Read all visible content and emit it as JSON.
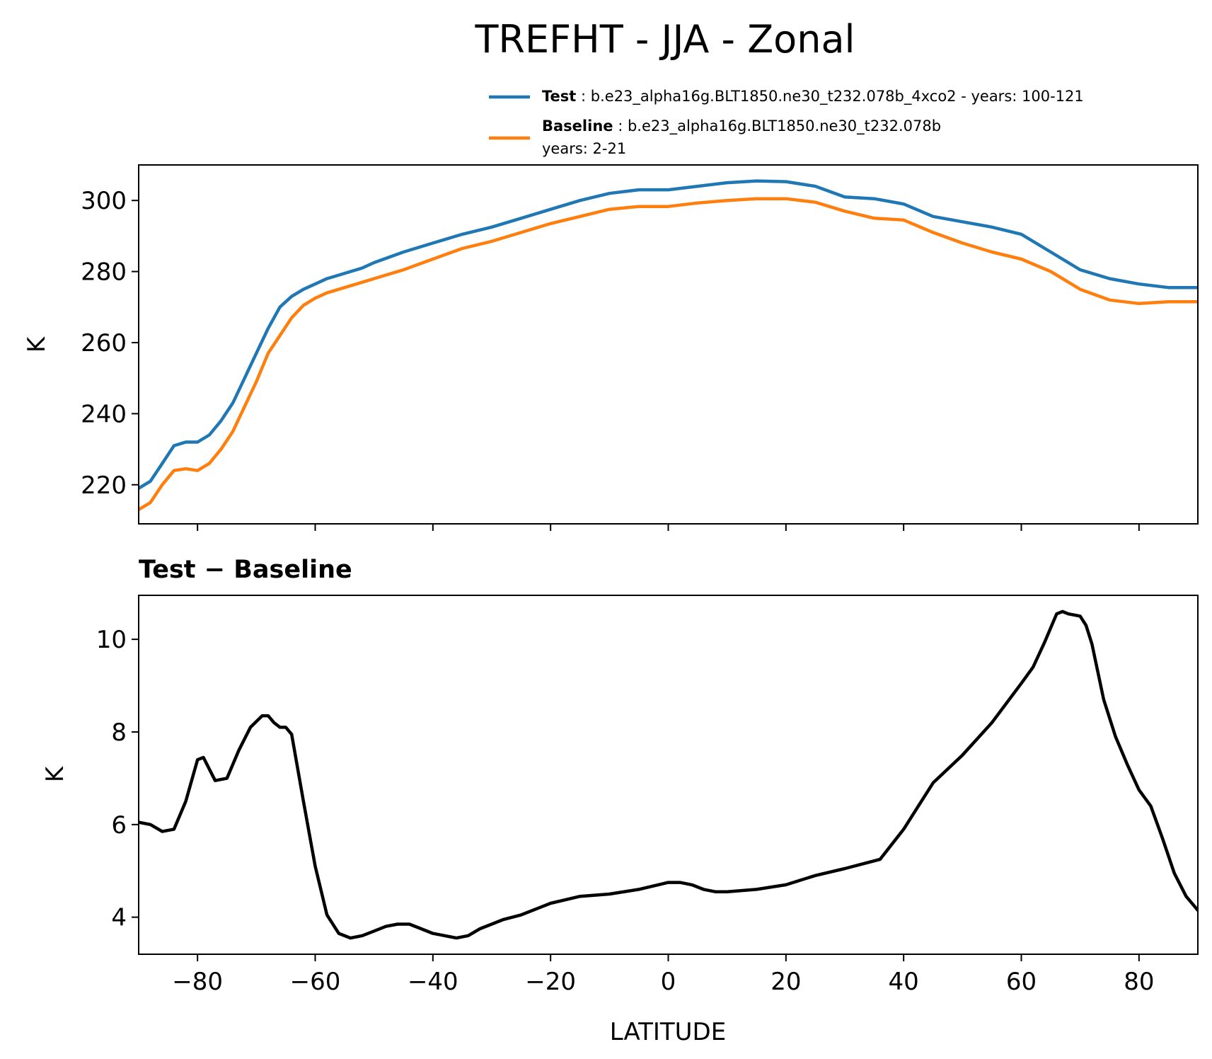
{
  "title": "TREFHT - JJA - Zonal",
  "legend": {
    "test": {
      "label": "Test",
      "separator": " : ",
      "desc": "b.e23_alpha16g.BLT1850.ne30_t232.078b_4xco2 - years: 100-121"
    },
    "baseline": {
      "label": "Baseline",
      "separator": " : ",
      "desc": "b.e23_alpha16g.BLT1850.ne30_t232.078b",
      "desc2": "years: 2-21"
    }
  },
  "colors": {
    "test": "#1f77b4",
    "baseline": "#ff7f0e",
    "diff": "#000000"
  },
  "xlabel": "LATITUDE",
  "chart_data": [
    {
      "type": "line",
      "title": "",
      "xlabel": "",
      "ylabel": "K",
      "xlim": [
        -90,
        90
      ],
      "ylim": [
        209,
        310
      ],
      "xticks": [
        -80,
        -60,
        -40,
        -20,
        0,
        20,
        40,
        60,
        80
      ],
      "yticks": [
        220,
        240,
        260,
        280,
        300
      ],
      "ytick_labels": [
        "220",
        "240",
        "260",
        "280",
        "300"
      ],
      "grid": false,
      "legend_position": "above-right",
      "x": [
        -90,
        -88,
        -86,
        -84,
        -82,
        -80,
        -78,
        -76,
        -74,
        -72,
        -70,
        -68,
        -66,
        -64,
        -62,
        -60,
        -58,
        -56,
        -54,
        -52,
        -50,
        -45,
        -40,
        -35,
        -30,
        -25,
        -20,
        -15,
        -10,
        -5,
        0,
        5,
        10,
        15,
        20,
        25,
        30,
        35,
        40,
        45,
        50,
        55,
        60,
        65,
        70,
        75,
        80,
        85,
        90
      ],
      "series": [
        {
          "name": "Test",
          "color": "#1f77b4",
          "values": [
            219,
            221,
            226,
            231,
            232,
            232,
            234,
            238,
            243,
            250,
            257,
            264,
            270,
            273,
            275,
            276.5,
            278,
            279,
            280,
            281,
            282.5,
            285.5,
            288,
            290.5,
            292.5,
            295,
            297.5,
            300,
            302,
            303,
            303,
            304,
            305,
            305.5,
            305.3,
            304,
            301,
            300.5,
            299,
            295.5,
            294,
            292.5,
            290.5,
            285.5,
            280.5,
            278,
            276.5,
            275.5,
            275.5
          ]
        },
        {
          "name": "Baseline",
          "color": "#ff7f0e",
          "values": [
            213,
            215,
            220,
            224,
            224.5,
            224,
            226,
            230,
            235,
            242,
            249,
            257,
            262,
            267,
            270.5,
            272.5,
            274,
            275,
            276,
            277,
            278,
            280.5,
            283.5,
            286.5,
            288.5,
            291,
            293.5,
            295.5,
            297.5,
            298.3,
            298.3,
            299.3,
            300,
            300.5,
            300.5,
            299.5,
            297,
            295,
            294.5,
            291,
            288,
            285.5,
            283.5,
            280,
            275,
            272,
            271,
            271.5,
            271.5
          ]
        }
      ]
    },
    {
      "type": "line",
      "title": "Test − Baseline",
      "xlabel": "LATITUDE",
      "ylabel": "K",
      "xlim": [
        -90,
        90
      ],
      "ylim": [
        3.2,
        10.95
      ],
      "xticks": [
        -80,
        -60,
        -40,
        -20,
        0,
        20,
        40,
        60,
        80
      ],
      "xtick_labels": [
        "−80",
        "−60",
        "−40",
        "−20",
        "0",
        "20",
        "40",
        "60",
        "80"
      ],
      "yticks": [
        4,
        6,
        8,
        10
      ],
      "ytick_labels": [
        "4",
        "6",
        "8",
        "10"
      ],
      "grid": false,
      "x": [
        -90,
        -88,
        -86,
        -84,
        -82,
        -80,
        -79,
        -77,
        -75,
        -73,
        -71,
        -69,
        -68,
        -67,
        -66,
        -65,
        -64,
        -62,
        -60,
        -58,
        -56,
        -54,
        -52,
        -50,
        -48,
        -46,
        -44,
        -42,
        -40,
        -38,
        -36,
        -34,
        -32,
        -30,
        -28,
        -25,
        -20,
        -15,
        -10,
        -5,
        0,
        2,
        4,
        6,
        8,
        10,
        15,
        20,
        25,
        30,
        33,
        36,
        40,
        45,
        50,
        55,
        60,
        62,
        64,
        66,
        67,
        68,
        70,
        71,
        72,
        74,
        76,
        78,
        80,
        82,
        84,
        86,
        88,
        90
      ],
      "series": [
        {
          "name": "Test − Baseline",
          "color": "#000000",
          "values": [
            6.05,
            6.0,
            5.85,
            5.9,
            6.5,
            7.4,
            7.45,
            6.95,
            7.0,
            7.6,
            8.1,
            8.35,
            8.35,
            8.2,
            8.1,
            8.1,
            7.95,
            6.5,
            5.1,
            4.05,
            3.65,
            3.55,
            3.6,
            3.7,
            3.8,
            3.85,
            3.85,
            3.75,
            3.65,
            3.6,
            3.55,
            3.6,
            3.75,
            3.85,
            3.95,
            4.05,
            4.3,
            4.45,
            4.5,
            4.6,
            4.75,
            4.75,
            4.7,
            4.6,
            4.55,
            4.55,
            4.6,
            4.7,
            4.9,
            5.05,
            5.15,
            5.25,
            5.9,
            6.9,
            7.5,
            8.2,
            9.05,
            9.4,
            9.95,
            10.55,
            10.6,
            10.55,
            10.5,
            10.3,
            9.9,
            8.7,
            7.9,
            7.3,
            6.75,
            6.4,
            5.7,
            4.95,
            4.45,
            4.15
          ]
        }
      ]
    }
  ]
}
